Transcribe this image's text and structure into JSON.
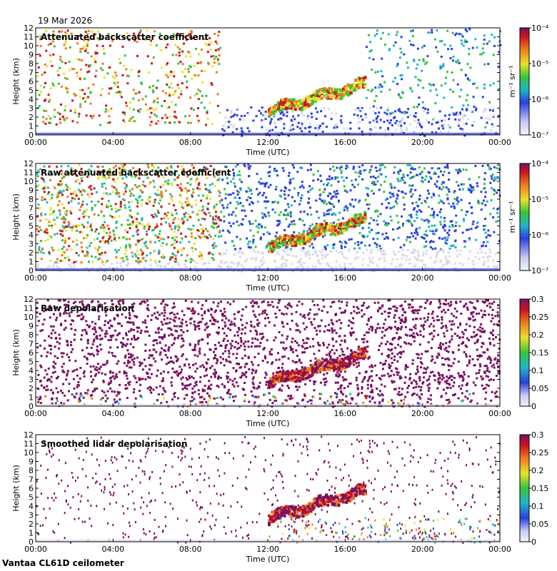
{
  "date": "19 Mar 2026",
  "footer": "Vantaa CL61D ceilometer",
  "colors": {
    "background": "#ffffff",
    "axis": "#000000",
    "low": "#d8d8ee",
    "blue": "#2b3fe0",
    "cyan": "#1fb5c8",
    "green": "#36c43a",
    "yellow": "#e9e22a",
    "orange": "#f07a1c",
    "red": "#c8141c",
    "purple": "#7a1060"
  },
  "chart_data": [
    {
      "type": "heatmap",
      "title": "Attenuated backscatter coefficient",
      "xlabel": "Time (UTC)",
      "ylabel": "Height (km)",
      "x_ticks": [
        "00:00",
        "04:00",
        "08:00",
        "12:00",
        "16:00",
        "20:00",
        "00:00"
      ],
      "y_ticks": [
        "0",
        "1",
        "2",
        "3",
        "4",
        "5",
        "6",
        "7",
        "8",
        "9",
        "10",
        "11",
        "12"
      ],
      "xlim_hours": [
        0,
        24
      ],
      "ylim_km": [
        0,
        12
      ],
      "colorbar": {
        "scale": "log",
        "label": "m⁻¹ sr⁻¹",
        "ticks": [
          "10⁻⁷",
          "10⁻⁶",
          "10⁻⁵",
          "10⁻⁴"
        ]
      }
    },
    {
      "type": "heatmap",
      "title": "Raw attenuated backscatter coefficient",
      "xlabel": "Time (UTC)",
      "ylabel": "Height (km)",
      "x_ticks": [
        "00:00",
        "04:00",
        "08:00",
        "12:00",
        "16:00",
        "20:00",
        "00:00"
      ],
      "y_ticks": [
        "0",
        "1",
        "2",
        "3",
        "4",
        "5",
        "6",
        "7",
        "8",
        "9",
        "10",
        "11",
        "12"
      ],
      "xlim_hours": [
        0,
        24
      ],
      "ylim_km": [
        0,
        12
      ],
      "colorbar": {
        "scale": "log",
        "label": "m⁻¹ sr⁻¹",
        "ticks": [
          "10⁻⁷",
          "10⁻⁶",
          "10⁻⁵",
          "10⁻⁴"
        ]
      }
    },
    {
      "type": "heatmap",
      "title": "Raw depolarisation",
      "xlabel": "Time (UTC)",
      "ylabel": "Height (km)",
      "x_ticks": [
        "00:00",
        "04:00",
        "08:00",
        "12:00",
        "16:00",
        "20:00",
        "00:00"
      ],
      "y_ticks": [
        "0",
        "1",
        "2",
        "3",
        "4",
        "5",
        "6",
        "7",
        "8",
        "9",
        "10",
        "11",
        "12"
      ],
      "xlim_hours": [
        0,
        24
      ],
      "ylim_km": [
        0,
        12
      ],
      "colorbar": {
        "scale": "linear",
        "label": "",
        "ticks": [
          "0",
          "0.05",
          "0.1",
          "0.15",
          "0.2",
          "0.25",
          "0.3"
        ]
      }
    },
    {
      "type": "heatmap",
      "title": "Smoothed lidar depolarisation",
      "xlabel": "Time (UTC)",
      "ylabel": "Height (km)",
      "x_ticks": [
        "00:00",
        "04:00",
        "08:00",
        "12:00",
        "16:00",
        "20:00",
        "00:00"
      ],
      "y_ticks": [
        "0",
        "1",
        "2",
        "3",
        "4",
        "5",
        "6",
        "7",
        "8",
        "9",
        "10",
        "11",
        "12"
      ],
      "xlim_hours": [
        0,
        24
      ],
      "ylim_km": [
        0,
        12
      ],
      "colorbar": {
        "scale": "linear",
        "label": "",
        "ticks": [
          "0",
          "0.05",
          "0.1",
          "0.15",
          "0.2",
          "0.25",
          "0.3"
        ]
      }
    }
  ]
}
